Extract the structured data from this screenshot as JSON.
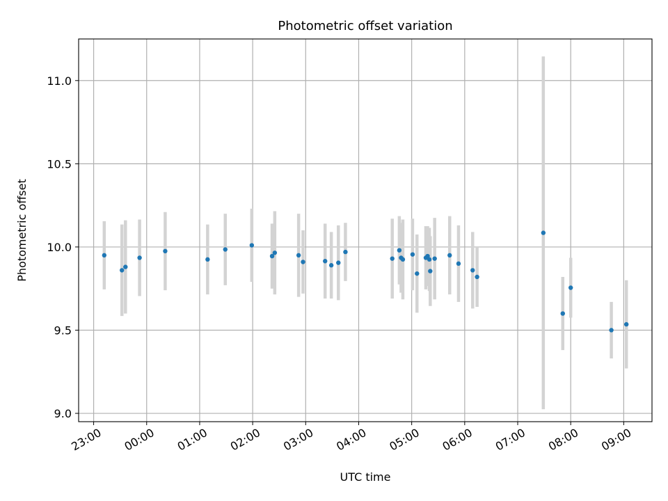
{
  "chart_data": {
    "type": "scatter",
    "title": "Photometric offset variation",
    "xlabel": "UTC time",
    "ylabel": "Photometric offset",
    "x_tick_labels": [
      "23:00",
      "00:00",
      "01:00",
      "02:00",
      "03:00",
      "04:00",
      "05:00",
      "06:00",
      "07:00",
      "08:00",
      "09:00"
    ],
    "y_tick_labels": [
      "9.0",
      "9.5",
      "10.0",
      "10.5",
      "11.0"
    ],
    "y_ticks": [
      9.0,
      9.5,
      10.0,
      10.5,
      11.0
    ],
    "xlim": [
      "22:43",
      "09:32"
    ],
    "ylim": [
      8.95,
      11.25
    ],
    "grid": true,
    "series": [
      {
        "points": [
          {
            "x": "23:12",
            "y": 9.95,
            "err": 0.205
          },
          {
            "x": "23:32",
            "y": 9.86,
            "err": 0.275
          },
          {
            "x": "23:36",
            "y": 9.88,
            "err": 0.28
          },
          {
            "x": "23:52",
            "y": 9.935,
            "err": 0.23
          },
          {
            "x": "00:21",
            "y": 9.975,
            "err": 0.235
          },
          {
            "x": "01:09",
            "y": 9.925,
            "err": 0.21
          },
          {
            "x": "01:29",
            "y": 9.985,
            "err": 0.215
          },
          {
            "x": "01:59",
            "y": 10.01,
            "err": 0.22
          },
          {
            "x": "02:22",
            "y": 9.945,
            "err": 0.195
          },
          {
            "x": "02:25",
            "y": 9.965,
            "err": 0.25
          },
          {
            "x": "02:52",
            "y": 9.95,
            "err": 0.25
          },
          {
            "x": "02:57",
            "y": 9.91,
            "err": 0.19
          },
          {
            "x": "03:22",
            "y": 9.915,
            "err": 0.225
          },
          {
            "x": "03:29",
            "y": 9.89,
            "err": 0.2
          },
          {
            "x": "03:37",
            "y": 9.905,
            "err": 0.225
          },
          {
            "x": "03:45",
            "y": 9.97,
            "err": 0.175
          },
          {
            "x": "04:38",
            "y": 9.93,
            "err": 0.24
          },
          {
            "x": "04:46",
            "y": 9.98,
            "err": 0.205
          },
          {
            "x": "04:48",
            "y": 9.935,
            "err": 0.21
          },
          {
            "x": "04:50",
            "y": 9.925,
            "err": 0.24
          },
          {
            "x": "05:01",
            "y": 9.955,
            "err": 0.215
          },
          {
            "x": "05:06",
            "y": 9.84,
            "err": 0.235
          },
          {
            "x": "05:16",
            "y": 9.935,
            "err": 0.19
          },
          {
            "x": "05:18",
            "y": 9.945,
            "err": 0.18
          },
          {
            "x": "05:20",
            "y": 9.925,
            "err": 0.19
          },
          {
            "x": "05:21",
            "y": 9.855,
            "err": 0.21
          },
          {
            "x": "05:26",
            "y": 9.93,
            "err": 0.245
          },
          {
            "x": "05:43",
            "y": 9.95,
            "err": 0.235
          },
          {
            "x": "05:53",
            "y": 9.9,
            "err": 0.23
          },
          {
            "x": "06:09",
            "y": 9.86,
            "err": 0.23
          },
          {
            "x": "06:14",
            "y": 9.82,
            "err": 0.18
          },
          {
            "x": "07:29",
            "y": 10.085,
            "err": 1.06
          },
          {
            "x": "07:51",
            "y": 9.6,
            "err": 0.22
          },
          {
            "x": "08:00",
            "y": 9.755,
            "err": 0.18
          },
          {
            "x": "08:46",
            "y": 9.5,
            "err": 0.17
          },
          {
            "x": "09:03",
            "y": 9.535,
            "err": 0.265
          }
        ]
      }
    ],
    "colors": {
      "marker": "#1f77b4",
      "errorbar": "#d3d3d3",
      "grid": "#b0b0b0",
      "axes": "#000000"
    }
  }
}
